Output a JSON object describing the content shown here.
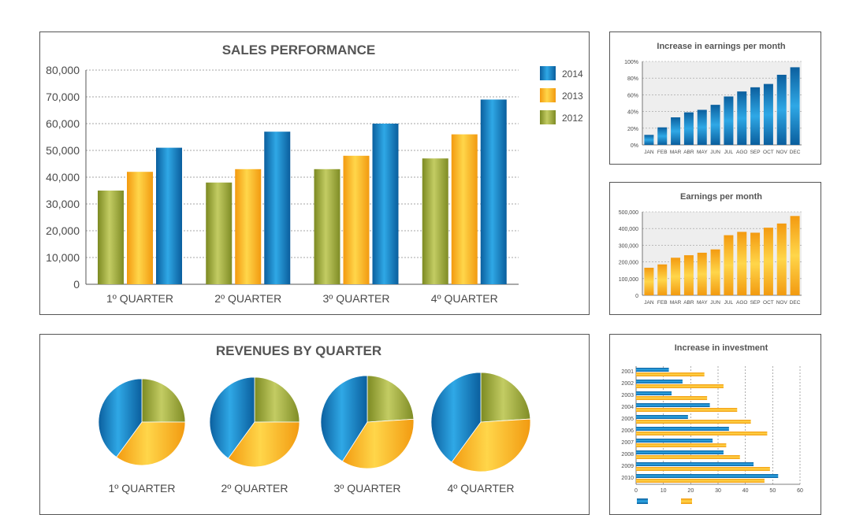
{
  "chart_data": [
    {
      "id": "sales",
      "type": "bar",
      "title": "SALES PERFORMANCE",
      "categories": [
        "1º QUARTER",
        "2º QUARTER",
        "3º QUARTER",
        "4º QUARTER"
      ],
      "series": [
        {
          "name": "2012",
          "values": [
            35000,
            38000,
            43000,
            47000
          ]
        },
        {
          "name": "2013",
          "values": [
            42000,
            43000,
            48000,
            56000
          ]
        },
        {
          "name": "2014",
          "values": [
            51000,
            57000,
            60000,
            69000
          ]
        }
      ],
      "yticks": [
        "0",
        "10,000",
        "20,000",
        "30,000",
        "40,000",
        "50,000",
        "60,000",
        "70,000",
        "80,000"
      ],
      "ylim": [
        0,
        80000
      ],
      "grid": true,
      "legend": "right"
    },
    {
      "id": "increase",
      "type": "bar",
      "title": "Increase in earnings per month",
      "categories": [
        "JAN",
        "FEB",
        "MAR",
        "ABR",
        "MAY",
        "JUN",
        "JUL",
        "AGO",
        "SEP",
        "OCT",
        "NOV",
        "DEC"
      ],
      "values": [
        12,
        21,
        33,
        39,
        42,
        48,
        58,
        64,
        69,
        73,
        84,
        93
      ],
      "yticks": [
        "0%",
        "20%",
        "40%",
        "60%",
        "80%",
        "100%"
      ],
      "ylim": [
        0,
        100
      ],
      "grid": true
    },
    {
      "id": "earnings",
      "type": "bar",
      "title": "Earnings per month",
      "categories": [
        "JAN",
        "FEB",
        "MAR",
        "ABR",
        "MAY",
        "JUN",
        "JUL",
        "AGO",
        "SEP",
        "OCT",
        "NOV",
        "DEC"
      ],
      "values": [
        165000,
        185000,
        225000,
        240000,
        255000,
        275000,
        360000,
        380000,
        375000,
        405000,
        430000,
        475000
      ],
      "yticks": [
        "0",
        "100,000",
        "200,000",
        "300,000",
        "400,000",
        "500,000"
      ],
      "ylim": [
        0,
        500000
      ],
      "grid": true
    },
    {
      "id": "revenues",
      "type": "pie",
      "title": "REVENUES BY QUARTER",
      "categories": [
        "1º QUARTER",
        "2º QUARTER",
        "3º QUARTER",
        "4º QUARTER"
      ],
      "pies": [
        [
          0.25,
          0.35,
          0.4
        ],
        [
          0.25,
          0.35,
          0.4
        ],
        [
          0.24,
          0.35,
          0.41
        ],
        [
          0.24,
          0.36,
          0.4
        ]
      ]
    },
    {
      "id": "investment",
      "type": "bar",
      "orientation": "horizontal",
      "title": "Increase in investment",
      "categories": [
        "2001",
        "2002",
        "2003",
        "2004",
        "2005",
        "2006",
        "2007",
        "2008",
        "2009",
        "2010"
      ],
      "series": [
        {
          "values": [
            12,
            17,
            13,
            27,
            19,
            34,
            28,
            32,
            43,
            52
          ]
        },
        {
          "values": [
            25,
            32,
            26,
            37,
            42,
            48,
            33,
            38,
            49,
            47
          ]
        }
      ],
      "xticks": [
        "0",
        "10",
        "20",
        "30",
        "40",
        "50",
        "60"
      ],
      "xlim": [
        0,
        60
      ],
      "grid": true
    }
  ],
  "colors": {
    "green": "#9aa63a",
    "orange": "#f7b21b",
    "blue": "#0f7fc4",
    "text": "#4a4a4a"
  }
}
